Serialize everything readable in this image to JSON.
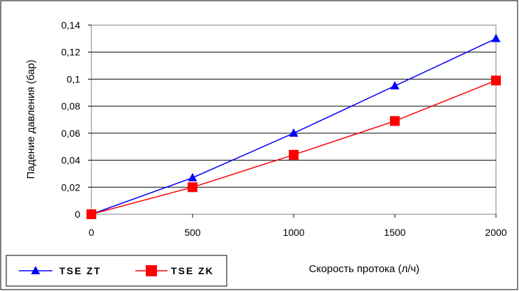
{
  "chart_data": {
    "type": "line",
    "title": "",
    "xlabel": "Скорость протока (л/ч)",
    "ylabel": "Падение давления (бар)",
    "x": [
      0,
      500,
      1000,
      1500,
      2000
    ],
    "x_tick_labels": [
      "0",
      "500",
      "1000",
      "1500",
      "2000"
    ],
    "y_tick_labels": [
      "0",
      "0,02",
      "0,04",
      "0,06",
      "0,08",
      "0,1",
      "0,12",
      "0,14"
    ],
    "xlim": [
      0,
      2000
    ],
    "ylim": [
      0,
      0.14
    ],
    "grid": "horizontal",
    "legend_position": "bottom-left",
    "series": [
      {
        "name": "TSE ZT",
        "values": [
          0,
          0.027,
          0.06,
          0.095,
          0.13
        ],
        "color": "#0000ff",
        "marker": "triangle"
      },
      {
        "name": "TSE ZK",
        "values": [
          0,
          0.02,
          0.044,
          0.069,
          0.099
        ],
        "color": "#ff0000",
        "marker": "square"
      }
    ]
  }
}
